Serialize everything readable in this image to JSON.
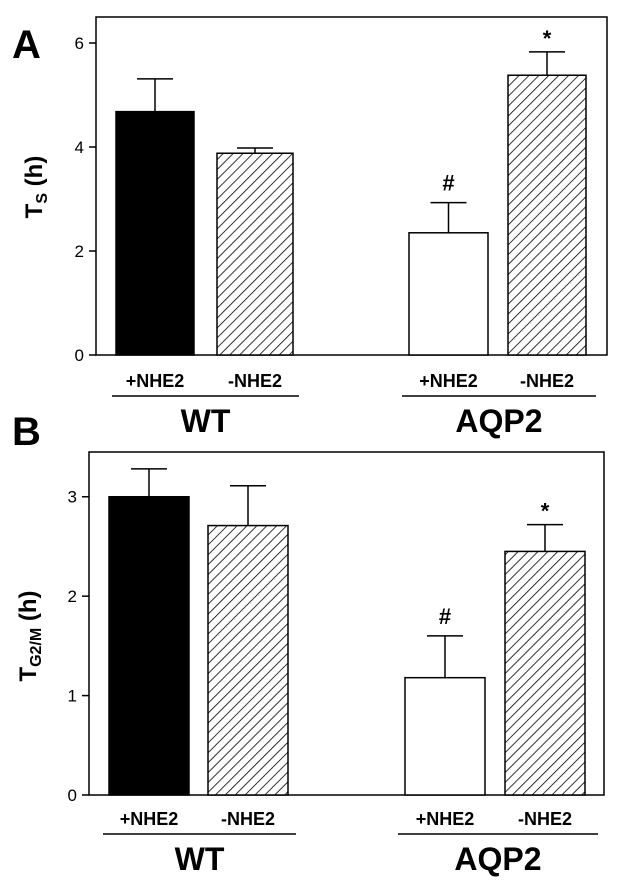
{
  "chart_data": [
    {
      "type": "bar",
      "panel": "A",
      "ylabel": {
        "main": "T",
        "sub": "S",
        "unit": " (h)"
      },
      "ylim": [
        0,
        6.5
      ],
      "yticks": [
        0,
        2,
        4,
        6
      ],
      "categories": [
        "+NHE2",
        "-NHE2",
        "+NHE2",
        "-NHE2"
      ],
      "groups": [
        {
          "label": "WT",
          "bars": [
            0,
            1
          ]
        },
        {
          "label": "AQP2",
          "bars": [
            2,
            3
          ]
        }
      ],
      "values": [
        4.68,
        3.88,
        2.35,
        5.38
      ],
      "errors": [
        0.63,
        0.1,
        0.58,
        0.45
      ],
      "fills": [
        "solid",
        "hatch",
        "open",
        "hatch"
      ],
      "annotations": [
        "",
        "",
        "#",
        "*"
      ]
    },
    {
      "type": "bar",
      "panel": "B",
      "ylabel": {
        "main": "T",
        "sub": "G2/M",
        "unit": " (h)"
      },
      "ylim": [
        0,
        3.45
      ],
      "yticks": [
        0,
        1,
        2,
        3
      ],
      "categories": [
        "+NHE2",
        "-NHE2",
        "+NHE2",
        "-NHE2"
      ],
      "groups": [
        {
          "label": "WT",
          "bars": [
            0,
            1
          ]
        },
        {
          "label": "AQP2",
          "bars": [
            2,
            3
          ]
        }
      ],
      "values": [
        3.0,
        2.71,
        1.18,
        2.45
      ],
      "errors": [
        0.28,
        0.4,
        0.42,
        0.27
      ],
      "fills": [
        "solid",
        "hatch",
        "open",
        "hatch"
      ],
      "annotations": [
        "",
        "",
        "#",
        "*"
      ]
    }
  ],
  "colors": {
    "ink": "#000000",
    "open_fill": "#ffffff",
    "solid_fill": "#000000"
  }
}
